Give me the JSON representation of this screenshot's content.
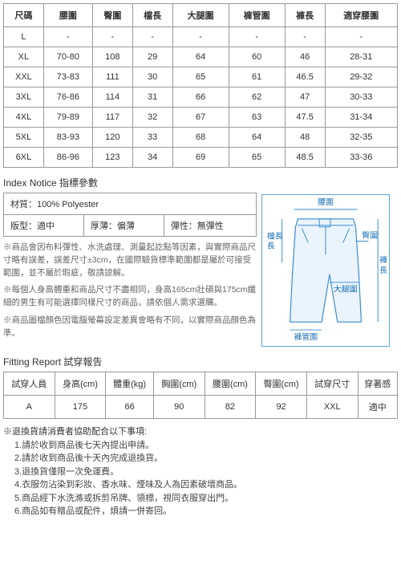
{
  "sizeTable": {
    "headers": [
      "尺碼",
      "腰圍",
      "臀圍",
      "檔長",
      "大腿圍",
      "褲管圍",
      "褲長",
      "適穿腰圍"
    ],
    "rows": [
      [
        "L",
        "-",
        "-",
        "-",
        "-",
        "-",
        "-",
        "-"
      ],
      [
        "XL",
        "70-80",
        "108",
        "29",
        "64",
        "60",
        "46",
        "28-31"
      ],
      [
        "XXL",
        "73-83",
        "111",
        "30",
        "65",
        "61",
        "46.5",
        "29-32"
      ],
      [
        "3XL",
        "76-86",
        "114",
        "31",
        "66",
        "62",
        "47",
        "30-33"
      ],
      [
        "4XL",
        "79-89",
        "117",
        "32",
        "67",
        "63",
        "47.5",
        "31-34"
      ],
      [
        "5XL",
        "83-93",
        "120",
        "33",
        "68",
        "64",
        "48",
        "32-35"
      ],
      [
        "6XL",
        "86-96",
        "123",
        "34",
        "69",
        "65",
        "48.5",
        "33-36"
      ]
    ]
  },
  "indexTitle": "Index Notice 指標參數",
  "index": {
    "material": "材質：100% Polyester",
    "fit": "版型：適中",
    "thickness": "厚薄：偏薄",
    "stretch": "彈性：無彈性"
  },
  "notes": {
    "n1": "※商品會因布料彈性、水洗處理、測量起訖點等因素，與實際商品尺寸略有誤差，誤差尺寸±3cm，在國際驗貨標準範圍都是屬於可接受範圍，並不屬於瑕疵，敬請諒解。",
    "n2": "※每個人身高體重和商品尺寸不盡相同，身高165cm壯碩與175cm纖細的男生有可能選擇同樣尺寸的商品，請依個人需求選購。",
    "n3": "※商品圖檔顏色因電腦螢幕設定差異會略有不同，以實際商品顏色為準。"
  },
  "diagram": {
    "waist": "腰圍",
    "hip": "臀圍",
    "rise": "檔長",
    "thigh": "大腿圍",
    "hem": "褲管圍",
    "length": "褲長"
  },
  "fittingTitle": "Fitting Report 試穿報告",
  "fitTable": {
    "headers": [
      "試穿人員",
      "身高(cm)",
      "體重(kg)",
      "胸圍(cm)",
      "腰圍(cm)",
      "臀圍(cm)",
      "試穿尺寸",
      "穿著感"
    ],
    "rows": [
      [
        "A",
        "175",
        "66",
        "90",
        "82",
        "92",
        "XXL",
        "適中"
      ]
    ]
  },
  "returns": {
    "hdr": "※退換貨請消費者協助配合以下事項:",
    "i1": "1.請於收到商品後七天內提出申請。",
    "i2": "2.請於收到商品後十天內完成退換貨。",
    "i3": "3.退換貨僅限一次免運費。",
    "i4": "4.衣服勿沾染到彩妝、香水味、煙味及人為因素破壞商品。",
    "i5": "5.商品經下水洗滌或拆剪吊牌、領標，視同衣服穿出門。",
    "i6": "6.商品如有贈品或配件，煩請一併寄回。"
  }
}
